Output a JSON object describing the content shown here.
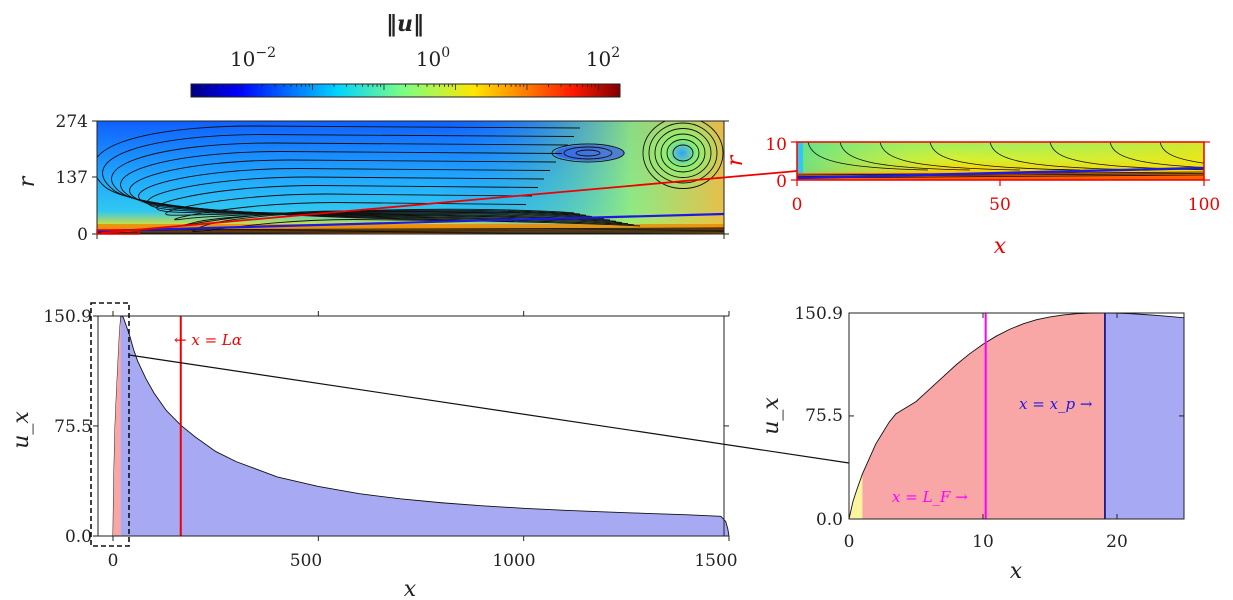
{
  "colors": {
    "red": "#ee0000",
    "blue_fill": "#a7a9f2",
    "blue_line": "#1a1ae0",
    "pink_fill": "#f8a7a6",
    "yellow_fill": "#fbf5a0",
    "magenta": "#ff00ff",
    "navy": "#1a1a8c"
  },
  "colorbar": {
    "title": "‖u‖",
    "ticks": [
      {
        "base": "10",
        "exp": "−2",
        "value": 0.01
      },
      {
        "base": "10",
        "exp": "0",
        "value": 1
      },
      {
        "base": "10",
        "exp": "2",
        "value": 100
      }
    ],
    "scale": "log",
    "range": [
      0.0002,
      200
    ],
    "colormap": "jet"
  },
  "chart_data": [
    {
      "id": "velocity-field",
      "type": "heatmap",
      "xlabel": "",
      "ylabel": "r",
      "xlim": [
        0,
        1500
      ],
      "ylim": [
        0,
        274
      ],
      "yticks": [
        "0",
        "137",
        "274"
      ],
      "overlay": "streamlines",
      "note_features": [
        "recirculation vortex centre",
        "jet along r = 0"
      ]
    },
    {
      "id": "velocity-field-zoom",
      "type": "heatmap",
      "xlabel": "x",
      "ylabel": "r",
      "xlim": [
        0,
        100
      ],
      "ylim": [
        0,
        10
      ],
      "xticks": [
        "0",
        "50",
        "100"
      ],
      "yticks": [
        "0",
        "10"
      ],
      "overlay": "streamlines"
    },
    {
      "id": "centerline-velocity",
      "type": "area",
      "xlabel": "x",
      "ylabel": "u_x",
      "xlim": [
        0,
        1500
      ],
      "ylim": [
        0,
        150.9
      ],
      "xticks": [
        "0",
        "500",
        "1000",
        "1500"
      ],
      "yticks": [
        "0.0",
        "75.5",
        "150.9"
      ],
      "annotation": "← x = Lα",
      "L_alpha": 165,
      "x": [
        0,
        2,
        5,
        8,
        12,
        16,
        19,
        21,
        25,
        30,
        40,
        50,
        60,
        80,
        100,
        130,
        165,
        200,
        250,
        300,
        400,
        500,
        600,
        700,
        800,
        900,
        1000,
        1100,
        1200,
        1300,
        1400,
        1480,
        1492,
        1497,
        1500
      ],
      "y": [
        0,
        40,
        75,
        95,
        118,
        140,
        150.5,
        150.9,
        150,
        146,
        138,
        128,
        120,
        108,
        98,
        86,
        76,
        68,
        58,
        51,
        40.5,
        34,
        29,
        25.5,
        22.8,
        20.7,
        19,
        17.6,
        16.5,
        15.5,
        14.5,
        13.5,
        10,
        5,
        0
      ]
    },
    {
      "id": "centerline-velocity-zoom",
      "type": "area",
      "xlabel": "x",
      "ylabel": "u_x",
      "xlim": [
        0,
        25
      ],
      "ylim": [
        0,
        150.9
      ],
      "xticks": [
        "0",
        "10",
        "20"
      ],
      "yticks": [
        "0.0",
        "75.5",
        "150.9"
      ],
      "L_F": 10.2,
      "x_p": 19.1,
      "annotations": [
        "x = L_F →",
        "x = x_p →"
      ],
      "x": [
        0,
        0.3,
        0.6,
        1,
        1.5,
        2,
        2.5,
        3,
        3.5,
        4,
        5,
        6,
        7,
        8,
        9,
        10,
        11,
        12,
        13,
        14,
        15,
        16,
        17,
        18,
        19.1,
        20,
        21,
        22,
        23,
        24,
        25
      ],
      "y": [
        0,
        13,
        22,
        33,
        44,
        55,
        63,
        71,
        77,
        80,
        86,
        95,
        104,
        113,
        121,
        128,
        134,
        139,
        143,
        146,
        148,
        149.5,
        150.4,
        150.8,
        150.9,
        150.8,
        150.4,
        149.8,
        149.1,
        148.3,
        147.4
      ]
    }
  ]
}
